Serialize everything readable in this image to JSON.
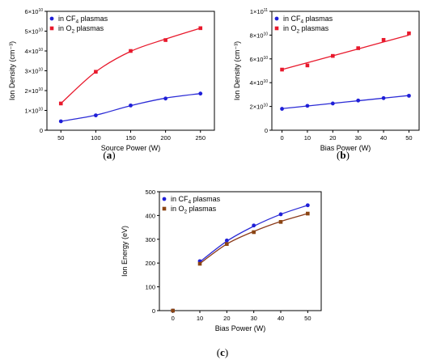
{
  "colors": {
    "blue": "#1f1fd8",
    "red": "#e8192c",
    "brown": "#8b4513",
    "blue_line": "#2b2bd6",
    "brown_line": "#8b3a1a"
  },
  "chart_data": [
    {
      "type": "scatter",
      "panel_label": "a",
      "xlabel": "Source Power (W)",
      "ylabel": "Ion Density (cm⁻³)",
      "xlim": [
        30,
        270
      ],
      "ylim": [
        0,
        60000000000.0
      ],
      "xticks": [
        50,
        100,
        150,
        200,
        250
      ],
      "yticks": [
        {
          "v": 0,
          "m": "0",
          "e": ""
        },
        {
          "v": 10000000000.0,
          "m": "1×10",
          "e": "10"
        },
        {
          "v": 20000000000.0,
          "m": "2×10",
          "e": "10"
        },
        {
          "v": 30000000000.0,
          "m": "3×10",
          "e": "10"
        },
        {
          "v": 40000000000.0,
          "m": "4×10",
          "e": "10"
        },
        {
          "v": 50000000000.0,
          "m": "5×10",
          "e": "10"
        },
        {
          "v": 60000000000.0,
          "m": "6×10",
          "e": "10"
        }
      ],
      "legend_position": "top-left",
      "series": [
        {
          "name_pre": "in CF",
          "name_sub": "4",
          "name_post": " plasmas",
          "color": "blue",
          "marker": "circle",
          "x": [
            50,
            100,
            150,
            200,
            250
          ],
          "y": [
            4500000000.0,
            7500000000.0,
            12500000000.0,
            16000000000.0,
            18500000000.0
          ],
          "fit": [
            4500000000.0,
            7600000000.0,
            12400000000.0,
            16200000000.0,
            18500000000.0
          ]
        },
        {
          "name_pre": "in O",
          "name_sub": "2",
          "name_post": " plasmas",
          "color": "red",
          "marker": "square",
          "x": [
            50,
            100,
            150,
            200,
            250
          ],
          "y": [
            13500000000.0,
            29500000000.0,
            40000000000.0,
            45500000000.0,
            51500000000.0
          ],
          "fit": [
            13500000000.0,
            29500000000.0,
            39800000000.0,
            46000000000.0,
            51500000000.0
          ]
        }
      ]
    },
    {
      "type": "scatter",
      "panel_label": "b",
      "xlabel": "Bias Power (W)",
      "ylabel": "Ion Density (cm⁻³)",
      "xlim": [
        -4,
        54
      ],
      "ylim": [
        0,
        100000000000.0
      ],
      "xticks": [
        0,
        10,
        20,
        30,
        40,
        50
      ],
      "yticks": [
        {
          "v": 0,
          "m": "0",
          "e": ""
        },
        {
          "v": 20000000000.0,
          "m": "2×10",
          "e": "10"
        },
        {
          "v": 40000000000.0,
          "m": "4×10",
          "e": "10"
        },
        {
          "v": 60000000000.0,
          "m": "6×10",
          "e": "10"
        },
        {
          "v": 80000000000.0,
          "m": "8×10",
          "e": "10"
        },
        {
          "v": 100000000000.0,
          "m": "1×10",
          "e": "11"
        }
      ],
      "legend_position": "top-left",
      "series": [
        {
          "name_pre": "in CF",
          "name_sub": "4",
          "name_post": " plasmas",
          "color": "blue",
          "marker": "circle",
          "x": [
            0,
            10,
            20,
            30,
            40,
            50
          ],
          "y": [
            18000000000.0,
            20500000000.0,
            22500000000.0,
            25000000000.0,
            27000000000.0,
            29000000000.0
          ],
          "fit": [
            18200000000.0,
            20400000000.0,
            22600000000.0,
            24800000000.0,
            27000000000.0,
            29200000000.0
          ]
        },
        {
          "name_pre": "in O",
          "name_sub": "2",
          "name_post": " plasmas",
          "color": "red",
          "marker": "square",
          "x": [
            0,
            10,
            20,
            30,
            40,
            50
          ],
          "y": [
            51000000000.0,
            54500000000.0,
            62500000000.0,
            69000000000.0,
            76000000000.0,
            81500000000.0
          ],
          "fit": [
            51000000000.0,
            56800000000.0,
            62600000000.0,
            68400000000.0,
            74200000000.0,
            80000000000.0
          ]
        }
      ]
    },
    {
      "type": "scatter",
      "panel_label": "c",
      "xlabel": "Bias Power (W)",
      "ylabel": "Ion Energy (eV)",
      "xlim": [
        -5,
        55
      ],
      "ylim": [
        0,
        500
      ],
      "xticks": [
        0,
        10,
        20,
        30,
        40,
        50
      ],
      "yticks": [
        {
          "v": 0,
          "m": "0",
          "e": ""
        },
        {
          "v": 100,
          "m": "100",
          "e": ""
        },
        {
          "v": 200,
          "m": "200",
          "e": ""
        },
        {
          "v": 300,
          "m": "300",
          "e": ""
        },
        {
          "v": 400,
          "m": "400",
          "e": ""
        },
        {
          "v": 500,
          "m": "500",
          "e": ""
        }
      ],
      "legend_position": "top-left",
      "series": [
        {
          "name_pre": "in CF",
          "name_sub": "4",
          "name_post": " plasmas",
          "color": "blue",
          "marker": "circle",
          "x": [
            0,
            10,
            20,
            30,
            40,
            50
          ],
          "y": [
            0,
            208,
            295,
            358,
            405,
            443
          ],
          "fit_x": [
            10,
            20,
            30,
            40,
            50
          ],
          "fit": [
            205,
            292,
            355,
            405,
            443
          ]
        },
        {
          "name_pre": "in O",
          "name_sub": "2",
          "name_post": " plasmas",
          "color": "brown",
          "marker": "square",
          "x": [
            0,
            10,
            20,
            30,
            40,
            50
          ],
          "y": [
            0,
            197,
            280,
            330,
            373,
            408
          ],
          "fit_x": [
            10,
            20,
            30,
            40,
            50
          ],
          "fit": [
            198,
            280,
            333,
            375,
            408
          ]
        }
      ]
    }
  ]
}
